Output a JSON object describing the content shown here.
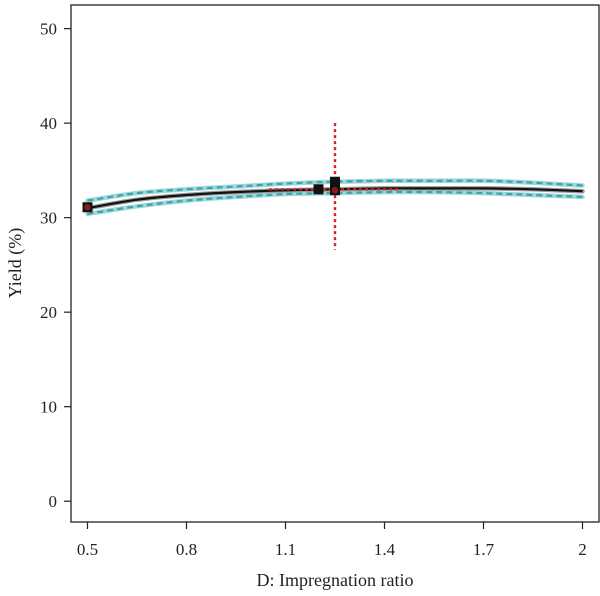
{
  "chart_data": {
    "type": "line",
    "title": "",
    "xlabel": "D: Impregnation ratio",
    "ylabel": "Yield (%)",
    "xlim": [
      0.45,
      2.05
    ],
    "ylim": [
      -2.2,
      52.5
    ],
    "xticks": [
      0.5,
      0.8,
      1.1,
      1.4,
      1.7,
      2.0
    ],
    "xtick_labels": [
      "0.5",
      "0.8",
      "1.1",
      "1.4",
      "1.7",
      "2"
    ],
    "yticks": [
      0,
      10,
      20,
      30,
      40,
      50
    ],
    "ytick_labels": [
      "0",
      "10",
      "20",
      "30",
      "40",
      "50"
    ],
    "grid": false,
    "series": [
      {
        "role": "fit",
        "style": "solid",
        "color": "#111111",
        "x": [
          0.5,
          0.65,
          0.8,
          0.95,
          1.1,
          1.25,
          1.4,
          1.55,
          1.7,
          1.85,
          2.0
        ],
        "y": [
          31.0,
          31.9,
          32.4,
          32.7,
          32.9,
          33.0,
          33.1,
          33.1,
          33.1,
          33.0,
          32.8
        ]
      },
      {
        "role": "upper-confidence-band",
        "style": "dashed",
        "color": "#3aa6a8",
        "x": [
          0.5,
          0.65,
          0.8,
          0.95,
          1.1,
          1.25,
          1.4,
          1.55,
          1.7,
          1.85,
          2.0
        ],
        "y": [
          31.8,
          32.6,
          33.0,
          33.3,
          33.6,
          33.8,
          33.9,
          33.9,
          33.9,
          33.7,
          33.4
        ]
      },
      {
        "role": "lower-confidence-band",
        "style": "dashed",
        "color": "#3aa6a8",
        "x": [
          0.5,
          0.65,
          0.8,
          0.95,
          1.1,
          1.25,
          1.4,
          1.55,
          1.7,
          1.85,
          2.0
        ],
        "y": [
          30.4,
          31.2,
          31.8,
          32.2,
          32.5,
          32.6,
          32.7,
          32.7,
          32.6,
          32.4,
          32.2
        ]
      }
    ],
    "design_points": [
      {
        "x": 0.5,
        "y": 31.1,
        "color": "#8b1a1a"
      },
      {
        "x": 1.2,
        "y": 33.0,
        "color": "#111111"
      },
      {
        "x": 1.25,
        "y": 33.4,
        "color": "#111111"
      },
      {
        "x": 1.25,
        "y": 33.8,
        "color": "#111111"
      },
      {
        "x": 1.25,
        "y": 32.9,
        "color": "#8b1a1a"
      }
    ],
    "reference_lines": {
      "color": "#e02020",
      "vertical": {
        "x": 1.25,
        "y_from": 26.6,
        "y_to": 40.0
      },
      "horizontal": {
        "y": 33.0,
        "x_from": 1.05,
        "x_to": 1.45
      }
    }
  }
}
